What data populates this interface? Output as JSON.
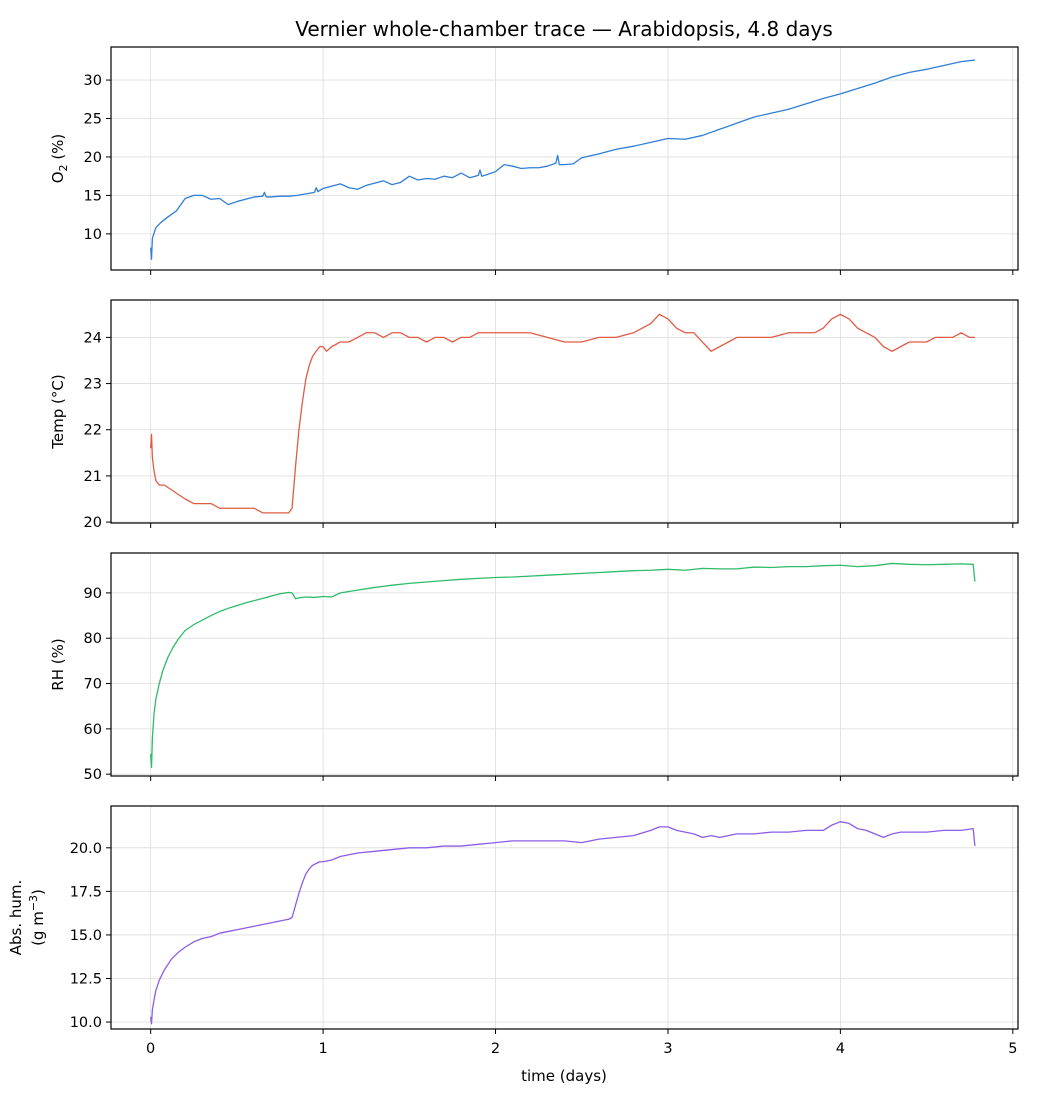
{
  "chart_data": {
    "type": "line",
    "title": "Vernier whole-chamber trace — Arabidopsis, 4.8 days",
    "xlabel": "time (days)",
    "xlim": [
      -0.23,
      5.03
    ],
    "xticks": [
      0,
      1,
      2,
      3,
      4,
      5
    ],
    "xtick_labels": [
      "0",
      "1",
      "2",
      "3",
      "4",
      "5"
    ],
    "grid": true,
    "legend": "none",
    "panels": [
      {
        "ylabel": "O₂ (%)",
        "ylabel_main": "O",
        "ylabel_sub": "2",
        "ylabel_tail": " (%)",
        "color": "#2f7ed8",
        "ylim": [
          5.3,
          34.3
        ],
        "yticks": [
          10,
          15,
          20,
          25,
          30
        ],
        "ytick_labels": [
          "10",
          "15",
          "20",
          "25",
          "30"
        ],
        "x": [
          0,
          0.005,
          0.01,
          0.03,
          0.06,
          0.1,
          0.15,
          0.2,
          0.25,
          0.3,
          0.35,
          0.4,
          0.45,
          0.5,
          0.55,
          0.6,
          0.65,
          0.66,
          0.67,
          0.7,
          0.75,
          0.8,
          0.85,
          0.9,
          0.95,
          0.96,
          0.97,
          1.0,
          1.05,
          1.1,
          1.15,
          1.2,
          1.25,
          1.3,
          1.35,
          1.4,
          1.45,
          1.5,
          1.55,
          1.6,
          1.65,
          1.7,
          1.75,
          1.8,
          1.85,
          1.9,
          1.91,
          1.92,
          1.95,
          2.0,
          2.05,
          2.1,
          2.15,
          2.2,
          2.25,
          2.3,
          2.35,
          2.36,
          2.37,
          2.4,
          2.45,
          2.5,
          2.6,
          2.7,
          2.8,
          2.9,
          3.0,
          3.1,
          3.2,
          3.3,
          3.4,
          3.5,
          3.6,
          3.7,
          3.8,
          3.9,
          4.0,
          4.1,
          4.2,
          4.3,
          4.4,
          4.5,
          4.6,
          4.7,
          4.78
        ],
        "y": [
          8.2,
          6.7,
          9.4,
          10.8,
          11.5,
          12.2,
          13.0,
          14.6,
          15.0,
          15.0,
          14.5,
          14.6,
          13.8,
          14.2,
          14.5,
          14.8,
          14.9,
          15.4,
          14.8,
          14.8,
          14.9,
          14.9,
          15.0,
          15.2,
          15.4,
          16.0,
          15.5,
          15.9,
          16.2,
          16.5,
          16.0,
          15.8,
          16.3,
          16.6,
          16.9,
          16.4,
          16.7,
          17.5,
          17.0,
          17.2,
          17.1,
          17.5,
          17.3,
          17.9,
          17.3,
          17.6,
          18.3,
          17.5,
          17.7,
          18.1,
          19.0,
          18.8,
          18.5,
          18.6,
          18.6,
          18.8,
          19.2,
          20.2,
          19.0,
          19.0,
          19.1,
          19.9,
          20.4,
          21.0,
          21.4,
          21.9,
          22.4,
          22.3,
          22.8,
          23.6,
          24.4,
          25.2,
          25.7,
          26.2,
          26.9,
          27.6,
          28.2,
          28.9,
          29.6,
          30.4,
          31.0,
          31.4,
          31.9,
          32.4,
          32.6
        ]
      },
      {
        "ylabel": "Temp (°C)",
        "color": "#e05c45",
        "ylim": [
          19.98,
          24.81
        ],
        "yticks": [
          20,
          21,
          22,
          23,
          24
        ],
        "ytick_labels": [
          "20",
          "21",
          "22",
          "23",
          "24"
        ],
        "x": [
          0,
          0.005,
          0.01,
          0.02,
          0.03,
          0.05,
          0.08,
          0.12,
          0.16,
          0.2,
          0.25,
          0.3,
          0.35,
          0.4,
          0.45,
          0.5,
          0.55,
          0.6,
          0.65,
          0.7,
          0.75,
          0.8,
          0.82,
          0.84,
          0.86,
          0.88,
          0.9,
          0.92,
          0.94,
          0.96,
          0.98,
          1.0,
          1.02,
          1.05,
          1.1,
          1.15,
          1.2,
          1.25,
          1.3,
          1.35,
          1.4,
          1.45,
          1.5,
          1.55,
          1.6,
          1.65,
          1.7,
          1.75,
          1.8,
          1.85,
          1.9,
          1.95,
          2.0,
          2.05,
          2.1,
          2.2,
          2.3,
          2.4,
          2.5,
          2.6,
          2.7,
          2.8,
          2.85,
          2.9,
          2.95,
          3.0,
          3.05,
          3.1,
          3.15,
          3.2,
          3.25,
          3.3,
          3.35,
          3.4,
          3.5,
          3.6,
          3.7,
          3.8,
          3.85,
          3.9,
          3.95,
          4.0,
          4.05,
          4.1,
          4.15,
          4.2,
          4.25,
          4.3,
          4.35,
          4.4,
          4.45,
          4.5,
          4.55,
          4.6,
          4.65,
          4.7,
          4.75,
          4.78
        ],
        "y": [
          21.6,
          21.9,
          21.4,
          21.1,
          20.9,
          20.8,
          20.8,
          20.7,
          20.6,
          20.5,
          20.4,
          20.4,
          20.4,
          20.3,
          20.3,
          20.3,
          20.3,
          20.3,
          20.2,
          20.2,
          20.2,
          20.2,
          20.3,
          21.2,
          22.0,
          22.6,
          23.1,
          23.4,
          23.6,
          23.7,
          23.8,
          23.8,
          23.7,
          23.8,
          23.9,
          23.9,
          24.0,
          24.1,
          24.1,
          24.0,
          24.1,
          24.1,
          24.0,
          24.0,
          23.9,
          24.0,
          24.0,
          23.9,
          24.0,
          24.0,
          24.1,
          24.1,
          24.1,
          24.1,
          24.1,
          24.1,
          24.0,
          23.9,
          23.9,
          24.0,
          24.0,
          24.1,
          24.2,
          24.3,
          24.5,
          24.4,
          24.2,
          24.1,
          24.1,
          23.9,
          23.7,
          23.8,
          23.9,
          24.0,
          24.0,
          24.0,
          24.1,
          24.1,
          24.1,
          24.2,
          24.4,
          24.5,
          24.4,
          24.2,
          24.1,
          24.0,
          23.8,
          23.7,
          23.8,
          23.9,
          23.9,
          23.9,
          24.0,
          24.0,
          24.0,
          24.1,
          24.0,
          24.0
        ]
      },
      {
        "ylabel": "RH (%)",
        "color": "#2ebb6a",
        "ylim": [
          49.6,
          98.8
        ],
        "yticks": [
          50,
          60,
          70,
          80,
          90
        ],
        "ytick_labels": [
          "50",
          "60",
          "70",
          "80",
          "90"
        ],
        "x": [
          0,
          0.005,
          0.01,
          0.02,
          0.03,
          0.05,
          0.07,
          0.1,
          0.13,
          0.16,
          0.2,
          0.25,
          0.3,
          0.35,
          0.4,
          0.45,
          0.5,
          0.55,
          0.6,
          0.65,
          0.7,
          0.75,
          0.8,
          0.82,
          0.84,
          0.86,
          0.9,
          0.95,
          1.0,
          1.05,
          1.1,
          1.2,
          1.3,
          1.4,
          1.5,
          1.6,
          1.7,
          1.8,
          1.9,
          2.0,
          2.1,
          2.2,
          2.3,
          2.4,
          2.5,
          2.6,
          2.7,
          2.8,
          2.9,
          3.0,
          3.1,
          3.2,
          3.3,
          3.4,
          3.5,
          3.6,
          3.7,
          3.8,
          3.9,
          4.0,
          4.1,
          4.2,
          4.3,
          4.4,
          4.5,
          4.6,
          4.7,
          4.77,
          4.78
        ],
        "y": [
          54.5,
          51.5,
          58.0,
          63.5,
          66.5,
          70.0,
          72.8,
          75.8,
          78.0,
          79.8,
          81.7,
          83.0,
          84.0,
          85.0,
          85.9,
          86.6,
          87.2,
          87.8,
          88.3,
          88.8,
          89.3,
          89.8,
          90.1,
          90.0,
          88.7,
          88.9,
          89.1,
          89.0,
          89.2,
          89.1,
          90.0,
          90.6,
          91.2,
          91.7,
          92.1,
          92.4,
          92.7,
          93.0,
          93.2,
          93.4,
          93.5,
          93.7,
          93.9,
          94.1,
          94.3,
          94.5,
          94.7,
          94.9,
          95.0,
          95.2,
          95.0,
          95.4,
          95.3,
          95.3,
          95.7,
          95.6,
          95.8,
          95.8,
          96.0,
          96.1,
          95.8,
          96.0,
          96.5,
          96.3,
          96.2,
          96.3,
          96.4,
          96.3,
          92.5
        ]
      },
      {
        "ylabel": "Abs. hum. (g m⁻³)",
        "ylabel_line1": "Abs. hum.",
        "ylabel_line2_main": "(g m",
        "ylabel_line2_sup": "−3",
        "ylabel_line2_tail": ")",
        "color": "#8c5ce6",
        "ylim": [
          9.6,
          22.4
        ],
        "yticks": [
          10.0,
          12.5,
          15.0,
          17.5,
          20.0
        ],
        "ytick_labels": [
          "10.0",
          "12.5",
          "15.0",
          "17.5",
          "20.0"
        ],
        "x": [
          0,
          0.005,
          0.01,
          0.02,
          0.03,
          0.05,
          0.08,
          0.12,
          0.16,
          0.2,
          0.25,
          0.3,
          0.35,
          0.4,
          0.45,
          0.5,
          0.55,
          0.6,
          0.65,
          0.7,
          0.75,
          0.8,
          0.82,
          0.84,
          0.86,
          0.88,
          0.9,
          0.92,
          0.94,
          0.96,
          0.98,
          1.0,
          1.05,
          1.1,
          1.15,
          1.2,
          1.3,
          1.4,
          1.5,
          1.6,
          1.7,
          1.8,
          1.9,
          2.0,
          2.1,
          2.2,
          2.3,
          2.4,
          2.5,
          2.6,
          2.7,
          2.8,
          2.9,
          2.95,
          3.0,
          3.05,
          3.1,
          3.15,
          3.2,
          3.25,
          3.3,
          3.35,
          3.4,
          3.5,
          3.6,
          3.7,
          3.8,
          3.85,
          3.9,
          3.95,
          4.0,
          4.05,
          4.1,
          4.15,
          4.2,
          4.25,
          4.3,
          4.35,
          4.4,
          4.5,
          4.6,
          4.7,
          4.77,
          4.78
        ],
        "y": [
          10.3,
          9.9,
          10.7,
          11.3,
          11.8,
          12.4,
          13.0,
          13.6,
          14.0,
          14.3,
          14.6,
          14.8,
          14.9,
          15.1,
          15.2,
          15.3,
          15.4,
          15.5,
          15.6,
          15.7,
          15.8,
          15.9,
          16.0,
          16.7,
          17.4,
          18.0,
          18.5,
          18.8,
          19.0,
          19.1,
          19.2,
          19.2,
          19.3,
          19.5,
          19.6,
          19.7,
          19.8,
          19.9,
          20.0,
          20.0,
          20.1,
          20.1,
          20.2,
          20.3,
          20.4,
          20.4,
          20.4,
          20.4,
          20.3,
          20.5,
          20.6,
          20.7,
          21.0,
          21.2,
          21.2,
          21.0,
          20.9,
          20.8,
          20.6,
          20.7,
          20.6,
          20.7,
          20.8,
          20.8,
          20.9,
          20.9,
          21.0,
          21.0,
          21.0,
          21.3,
          21.5,
          21.4,
          21.1,
          21.0,
          20.8,
          20.6,
          20.8,
          20.9,
          20.9,
          20.9,
          21.0,
          21.0,
          21.1,
          20.1
        ]
      }
    ]
  }
}
